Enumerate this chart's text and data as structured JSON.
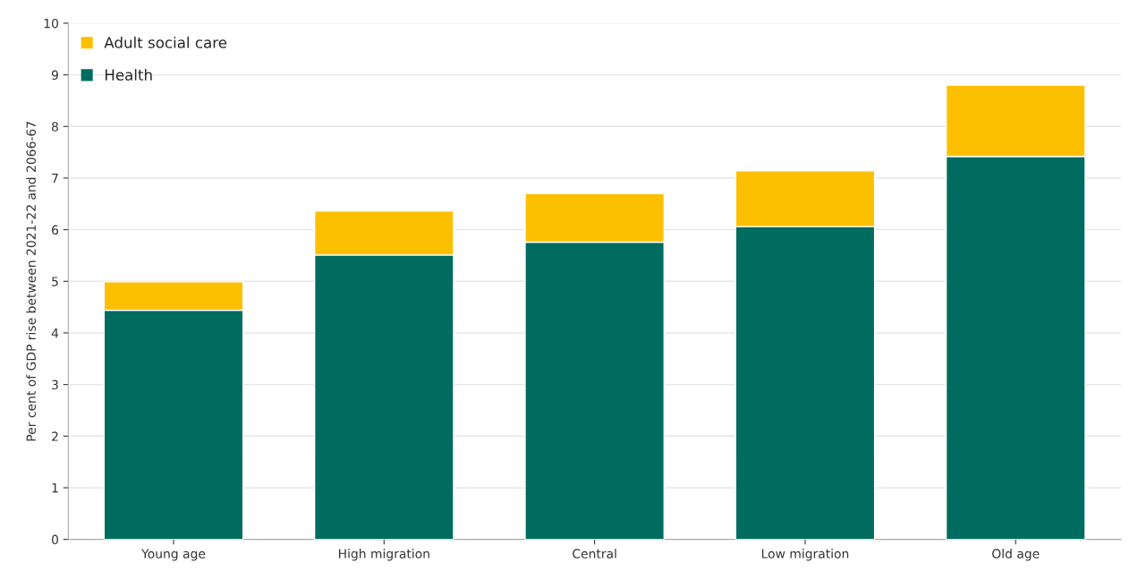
{
  "chart_data": {
    "type": "bar",
    "stacked": true,
    "ylabel": "Per cent of GDP rise between 2021-22 and 2066-67",
    "categories": [
      "Young age",
      "High migration",
      "Central",
      "Low migration",
      "Old age"
    ],
    "series": [
      {
        "name": "Health",
        "color": "#006b5f",
        "values": [
          4.44,
          5.51,
          5.76,
          6.06,
          7.42
        ]
      },
      {
        "name": "Adult social care",
        "color": "#fdc000",
        "values": [
          0.55,
          0.85,
          0.94,
          1.08,
          1.38
        ]
      }
    ],
    "ylim": [
      0,
      10
    ],
    "yticks": [
      0,
      1,
      2,
      3,
      4,
      5,
      6,
      7,
      8,
      9,
      10
    ],
    "grid": "y",
    "legend": "top left"
  }
}
